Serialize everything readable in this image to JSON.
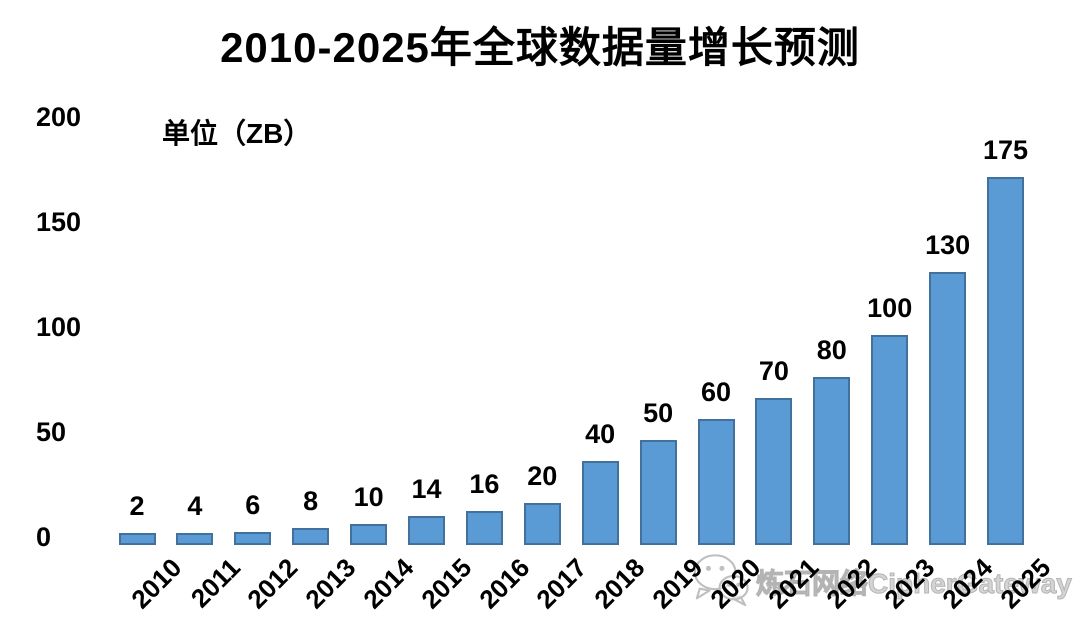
{
  "title": "2010-2025年全球数据量增长预测",
  "unit_label": "单位（ZB）",
  "watermark": {
    "icon": "wechat-icon",
    "text": "炼石网络CipherGateway",
    "color": "#C8C8C8"
  },
  "colors": {
    "background": "#FFFFFF",
    "text": "#000000",
    "bar_fill": "#5B9BD5",
    "bar_border": "#41719C"
  },
  "chart_data": {
    "type": "bar",
    "title": "2010-2025年全球数据量增长预测",
    "unit": "ZB",
    "unit_annotation": "单位（ZB）",
    "categories": [
      "2010",
      "2011",
      "2012",
      "2013",
      "2014",
      "2015",
      "2016",
      "2017",
      "2018",
      "2019",
      "2020",
      "2021",
      "2022",
      "2023",
      "2024",
      "2025"
    ],
    "values": [
      2,
      4,
      6,
      8,
      10,
      14,
      16,
      20,
      40,
      50,
      60,
      70,
      80,
      100,
      130,
      175
    ],
    "data_labels": [
      "2",
      "4",
      "6",
      "8",
      "10",
      "14",
      "16",
      "20",
      "40",
      "50",
      "60",
      "70",
      "80",
      "100",
      "130",
      "175"
    ],
    "xlabel": "",
    "ylabel": "",
    "ylim": [
      0,
      200
    ],
    "yticks": [
      0,
      50,
      100,
      150,
      200
    ],
    "grid": false,
    "legend": false,
    "xlabel_rotation": -45,
    "bar_fill": "#5B9BD5",
    "bar_border": "#41719C"
  }
}
